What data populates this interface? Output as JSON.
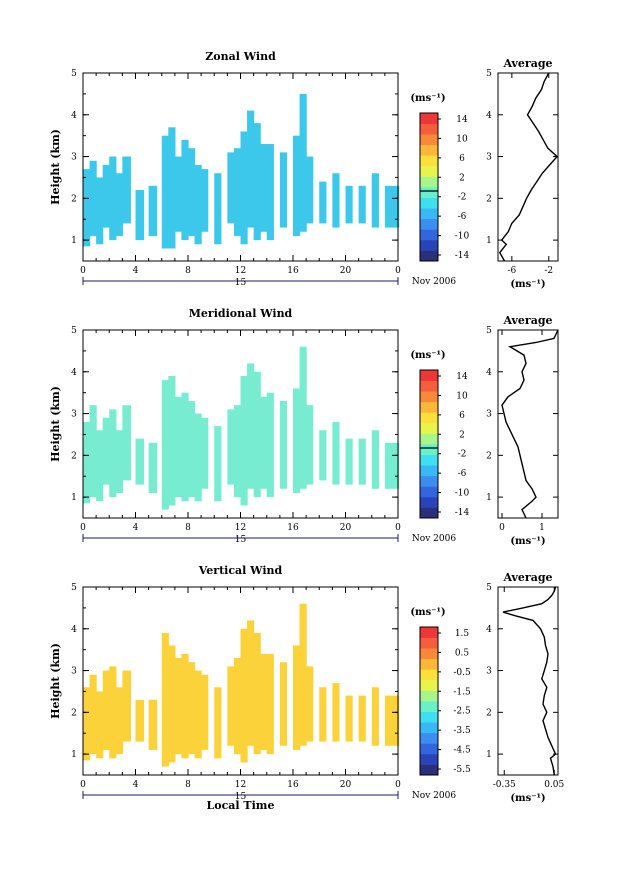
{
  "shared": {
    "month_label": "Nov 2006",
    "day_label": "15",
    "unit_label": "(ms⁻¹)",
    "height_label": "Height (km)",
    "x_label": "Local Time",
    "x_ticks": [
      "0",
      "4",
      "8",
      "12",
      "16",
      "20",
      "0"
    ],
    "y_ticks": [
      "1",
      "2",
      "3",
      "4",
      "5"
    ],
    "avg_title": "Average"
  },
  "colors": {
    "colorbar": [
      "#2a2f7a",
      "#2b43b8",
      "#3366dd",
      "#3b8ef0",
      "#38b8f5",
      "#3ee0f0",
      "#6af0c8",
      "#a8f58c",
      "#e6f54c",
      "#fbe03c",
      "#fbb838",
      "#f98838",
      "#f55e3a",
      "#ee3838"
    ],
    "zonal_fill": "#3cc8ea",
    "meridional_fill": "#78ecd0",
    "vertical_fill": "#fcd23a"
  },
  "chart_data": [
    {
      "type": "heatmap",
      "title": "Zonal Wind",
      "xlabel": "",
      "ylabel": "Height (km)",
      "xlim": [
        0,
        24
      ],
      "ylim": [
        0.5,
        5
      ],
      "colorbar_ticks": [
        "14",
        "10",
        "6",
        "2",
        "-2",
        "-6",
        "-10",
        "-14"
      ],
      "columns": [
        {
          "x": 0.0,
          "ymin": 0.85,
          "ymax": 2.7
        },
        {
          "x": 0.5,
          "ymin": 1.1,
          "ymax": 2.9
        },
        {
          "x": 1.0,
          "ymin": 0.9,
          "ymax": 2.5
        },
        {
          "x": 1.5,
          "ymin": 1.3,
          "ymax": 2.8
        },
        {
          "x": 2.0,
          "ymin": 1.0,
          "ymax": 3.0
        },
        {
          "x": 2.5,
          "ymin": 1.1,
          "ymax": 2.6
        },
        {
          "x": 3.0,
          "ymin": 1.4,
          "ymax": 3.0
        },
        {
          "x": 4.0,
          "ymin": 1.0,
          "ymax": 2.2
        },
        {
          "x": 5.0,
          "ymin": 1.1,
          "ymax": 2.3
        },
        {
          "x": 6.0,
          "ymin": 0.8,
          "ymax": 3.5
        },
        {
          "x": 6.5,
          "ymin": 0.8,
          "ymax": 3.7
        },
        {
          "x": 7.0,
          "ymin": 1.2,
          "ymax": 3.0
        },
        {
          "x": 7.5,
          "ymin": 1.0,
          "ymax": 3.4
        },
        {
          "x": 8.0,
          "ymin": 1.1,
          "ymax": 3.2
        },
        {
          "x": 8.5,
          "ymin": 0.9,
          "ymax": 2.8
        },
        {
          "x": 9.0,
          "ymin": 1.2,
          "ymax": 2.7
        },
        {
          "x": 10.0,
          "ymin": 0.9,
          "ymax": 2.6
        },
        {
          "x": 11.0,
          "ymin": 1.4,
          "ymax": 3.1
        },
        {
          "x": 11.5,
          "ymin": 1.1,
          "ymax": 3.2
        },
        {
          "x": 12.0,
          "ymin": 0.9,
          "ymax": 3.6
        },
        {
          "x": 12.5,
          "ymin": 1.3,
          "ymax": 4.1
        },
        {
          "x": 13.0,
          "ymin": 1.0,
          "ymax": 3.8
        },
        {
          "x": 13.5,
          "ymin": 1.2,
          "ymax": 3.3
        },
        {
          "x": 14.0,
          "ymin": 1.0,
          "ymax": 3.3
        },
        {
          "x": 15.0,
          "ymin": 1.3,
          "ymax": 3.1
        },
        {
          "x": 16.0,
          "ymin": 1.1,
          "ymax": 3.5
        },
        {
          "x": 16.5,
          "ymin": 1.2,
          "ymax": 4.5
        },
        {
          "x": 17.0,
          "ymin": 1.4,
          "ymax": 3.0
        },
        {
          "x": 18.0,
          "ymin": 1.4,
          "ymax": 2.4
        },
        {
          "x": 19.0,
          "ymin": 1.3,
          "ymax": 2.6
        },
        {
          "x": 20.0,
          "ymin": 1.4,
          "ymax": 2.3
        },
        {
          "x": 21.0,
          "ymin": 1.4,
          "ymax": 2.3
        },
        {
          "x": 22.0,
          "ymin": 1.3,
          "ymax": 2.6
        },
        {
          "x": 23.0,
          "ymin": 1.3,
          "ymax": 2.3
        }
      ],
      "average": {
        "title": "Average",
        "xlabel": "(ms⁻¹)",
        "xlim": [
          -7.5,
          -1
        ],
        "x_ticks": [
          -6,
          -2
        ],
        "heights": [
          0.5,
          0.7,
          0.9,
          1.0,
          1.2,
          1.4,
          1.6,
          1.8,
          2.0,
          2.2,
          2.4,
          2.6,
          2.8,
          3.0,
          3.2,
          3.4,
          3.6,
          3.8,
          4.0,
          4.2,
          4.4,
          4.6,
          4.8,
          5.0
        ],
        "values": [
          -6.8,
          -7.3,
          -6.6,
          -7.1,
          -6.4,
          -6.0,
          -5.2,
          -4.8,
          -4.4,
          -3.9,
          -3.3,
          -2.7,
          -1.9,
          -1.1,
          -2.1,
          -2.6,
          -3.1,
          -3.7,
          -4.3,
          -3.8,
          -3.4,
          -2.8,
          -2.5,
          -2.0
        ]
      }
    },
    {
      "type": "heatmap",
      "title": "Meridional Wind",
      "xlabel": "",
      "ylabel": "Height (km)",
      "xlim": [
        0,
        24
      ],
      "ylim": [
        0.5,
        5
      ],
      "colorbar_ticks": [
        "14",
        "10",
        "6",
        "2",
        "-2",
        "-6",
        "-10",
        "-14"
      ],
      "columns": [
        {
          "x": 0.0,
          "ymin": 0.85,
          "ymax": 2.8
        },
        {
          "x": 0.5,
          "ymin": 1.0,
          "ymax": 3.2
        },
        {
          "x": 1.0,
          "ymin": 0.9,
          "ymax": 2.6
        },
        {
          "x": 1.5,
          "ymin": 1.3,
          "ymax": 2.9
        },
        {
          "x": 2.0,
          "ymin": 1.0,
          "ymax": 3.1
        },
        {
          "x": 2.5,
          "ymin": 1.1,
          "ymax": 2.6
        },
        {
          "x": 3.0,
          "ymin": 1.4,
          "ymax": 3.2
        },
        {
          "x": 4.0,
          "ymin": 1.3,
          "ymax": 2.4
        },
        {
          "x": 5.0,
          "ymin": 1.1,
          "ymax": 2.3
        },
        {
          "x": 6.0,
          "ymin": 0.7,
          "ymax": 3.8
        },
        {
          "x": 6.5,
          "ymin": 0.8,
          "ymax": 3.9
        },
        {
          "x": 7.0,
          "ymin": 1.0,
          "ymax": 3.4
        },
        {
          "x": 7.5,
          "ymin": 0.9,
          "ymax": 3.5
        },
        {
          "x": 8.0,
          "ymin": 1.0,
          "ymax": 3.3
        },
        {
          "x": 8.5,
          "ymin": 0.9,
          "ymax": 3.0
        },
        {
          "x": 9.0,
          "ymin": 1.2,
          "ymax": 2.9
        },
        {
          "x": 10.0,
          "ymin": 0.9,
          "ymax": 2.7
        },
        {
          "x": 11.0,
          "ymin": 1.3,
          "ymax": 3.1
        },
        {
          "x": 11.5,
          "ymin": 1.0,
          "ymax": 3.2
        },
        {
          "x": 12.0,
          "ymin": 0.8,
          "ymax": 3.9
        },
        {
          "x": 12.5,
          "ymin": 1.2,
          "ymax": 4.2
        },
        {
          "x": 13.0,
          "ymin": 1.0,
          "ymax": 4.0
        },
        {
          "x": 13.5,
          "ymin": 1.2,
          "ymax": 3.4
        },
        {
          "x": 14.0,
          "ymin": 1.0,
          "ymax": 3.5
        },
        {
          "x": 15.0,
          "ymin": 1.2,
          "ymax": 3.3
        },
        {
          "x": 16.0,
          "ymin": 1.1,
          "ymax": 3.6
        },
        {
          "x": 16.5,
          "ymin": 1.2,
          "ymax": 4.6
        },
        {
          "x": 17.0,
          "ymin": 1.3,
          "ymax": 3.2
        },
        {
          "x": 18.0,
          "ymin": 1.4,
          "ymax": 2.6
        },
        {
          "x": 19.0,
          "ymin": 1.3,
          "ymax": 2.8
        },
        {
          "x": 20.0,
          "ymin": 1.3,
          "ymax": 2.4
        },
        {
          "x": 21.0,
          "ymin": 1.3,
          "ymax": 2.4
        },
        {
          "x": 22.0,
          "ymin": 1.2,
          "ymax": 2.6
        },
        {
          "x": 23.0,
          "ymin": 1.2,
          "ymax": 2.3
        }
      ],
      "average": {
        "title": "Average",
        "xlabel": "(ms⁻¹)",
        "xlim": [
          -0.1,
          1.4
        ],
        "x_ticks": [
          0,
          1
        ],
        "heights": [
          0.5,
          0.7,
          0.9,
          1.0,
          1.2,
          1.4,
          1.6,
          1.8,
          2.0,
          2.2,
          2.4,
          2.6,
          2.8,
          3.0,
          3.2,
          3.4,
          3.6,
          3.8,
          4.0,
          4.2,
          4.4,
          4.6,
          4.7,
          4.8,
          5.0
        ],
        "values": [
          0.6,
          0.5,
          0.75,
          0.85,
          0.75,
          0.6,
          0.55,
          0.5,
          0.45,
          0.4,
          0.3,
          0.2,
          0.1,
          0.05,
          0.0,
          0.15,
          0.45,
          0.55,
          0.5,
          0.6,
          0.55,
          0.2,
          0.85,
          1.3,
          1.4
        ]
      }
    },
    {
      "type": "heatmap",
      "title": "Vertical Wind",
      "xlabel": "Local Time",
      "ylabel": "Height (km)",
      "xlim": [
        0,
        24
      ],
      "ylim": [
        0.5,
        5
      ],
      "colorbar_ticks": [
        "1.5",
        "0.5",
        "-0.5",
        "-1.5",
        "-2.5",
        "-3.5",
        "-4.5",
        "-5.5"
      ],
      "columns": [
        {
          "x": 0.0,
          "ymin": 0.85,
          "ymax": 2.6
        },
        {
          "x": 0.5,
          "ymin": 1.0,
          "ymax": 2.9
        },
        {
          "x": 1.0,
          "ymin": 0.9,
          "ymax": 2.5
        },
        {
          "x": 1.5,
          "ymin": 1.1,
          "ymax": 3.0
        },
        {
          "x": 2.0,
          "ymin": 0.9,
          "ymax": 3.1
        },
        {
          "x": 2.5,
          "ymin": 1.0,
          "ymax": 2.6
        },
        {
          "x": 3.0,
          "ymin": 1.3,
          "ymax": 3.0
        },
        {
          "x": 4.0,
          "ymin": 1.3,
          "ymax": 2.3
        },
        {
          "x": 5.0,
          "ymin": 1.1,
          "ymax": 2.3
        },
        {
          "x": 6.0,
          "ymin": 0.7,
          "ymax": 3.9
        },
        {
          "x": 6.5,
          "ymin": 0.8,
          "ymax": 3.6
        },
        {
          "x": 7.0,
          "ymin": 1.0,
          "ymax": 3.3
        },
        {
          "x": 7.5,
          "ymin": 0.9,
          "ymax": 3.4
        },
        {
          "x": 8.0,
          "ymin": 1.0,
          "ymax": 3.2
        },
        {
          "x": 8.5,
          "ymin": 0.9,
          "ymax": 3.0
        },
        {
          "x": 9.0,
          "ymin": 1.1,
          "ymax": 2.9
        },
        {
          "x": 10.0,
          "ymin": 0.9,
          "ymax": 2.6
        },
        {
          "x": 11.0,
          "ymin": 1.2,
          "ymax": 3.1
        },
        {
          "x": 11.5,
          "ymin": 1.0,
          "ymax": 3.3
        },
        {
          "x": 12.0,
          "ymin": 0.8,
          "ymax": 4.0
        },
        {
          "x": 12.5,
          "ymin": 1.2,
          "ymax": 4.2
        },
        {
          "x": 13.0,
          "ymin": 1.0,
          "ymax": 3.9
        },
        {
          "x": 13.5,
          "ymin": 1.1,
          "ymax": 3.4
        },
        {
          "x": 14.0,
          "ymin": 1.0,
          "ymax": 3.4
        },
        {
          "x": 15.0,
          "ymin": 1.2,
          "ymax": 3.2
        },
        {
          "x": 16.0,
          "ymin": 1.1,
          "ymax": 3.6
        },
        {
          "x": 16.5,
          "ymin": 1.2,
          "ymax": 4.6
        },
        {
          "x": 17.0,
          "ymin": 1.3,
          "ymax": 3.1
        },
        {
          "x": 18.0,
          "ymin": 1.3,
          "ymax": 2.6
        },
        {
          "x": 19.0,
          "ymin": 1.3,
          "ymax": 2.7
        },
        {
          "x": 20.0,
          "ymin": 1.3,
          "ymax": 2.4
        },
        {
          "x": 21.0,
          "ymin": 1.3,
          "ymax": 2.4
        },
        {
          "x": 22.0,
          "ymin": 1.2,
          "ymax": 2.6
        },
        {
          "x": 23.0,
          "ymin": 1.2,
          "ymax": 2.4
        }
      ],
      "average": {
        "title": "Average",
        "xlabel": "(ms⁻¹)",
        "xlim": [
          -0.4,
          0.08
        ],
        "x_ticks": [
          -0.35,
          0.05
        ],
        "x_tick_labels": [
          "-0.35",
          "0.05"
        ],
        "heights": [
          0.5,
          0.7,
          0.9,
          1.0,
          1.2,
          1.4,
          1.6,
          1.8,
          2.0,
          2.2,
          2.4,
          2.6,
          2.8,
          3.0,
          3.2,
          3.4,
          3.6,
          3.8,
          4.0,
          4.2,
          4.3,
          4.4,
          4.5,
          4.6,
          4.7,
          4.8,
          4.9,
          5.0
        ],
        "values": [
          0.05,
          0.04,
          0.02,
          0.06,
          0.03,
          0.0,
          -0.02,
          -0.04,
          -0.01,
          -0.04,
          -0.03,
          -0.01,
          -0.05,
          -0.03,
          -0.01,
          0.0,
          -0.02,
          -0.03,
          -0.06,
          -0.12,
          -0.25,
          -0.36,
          -0.2,
          -0.05,
          0.0,
          0.03,
          0.05,
          0.06
        ]
      }
    }
  ]
}
